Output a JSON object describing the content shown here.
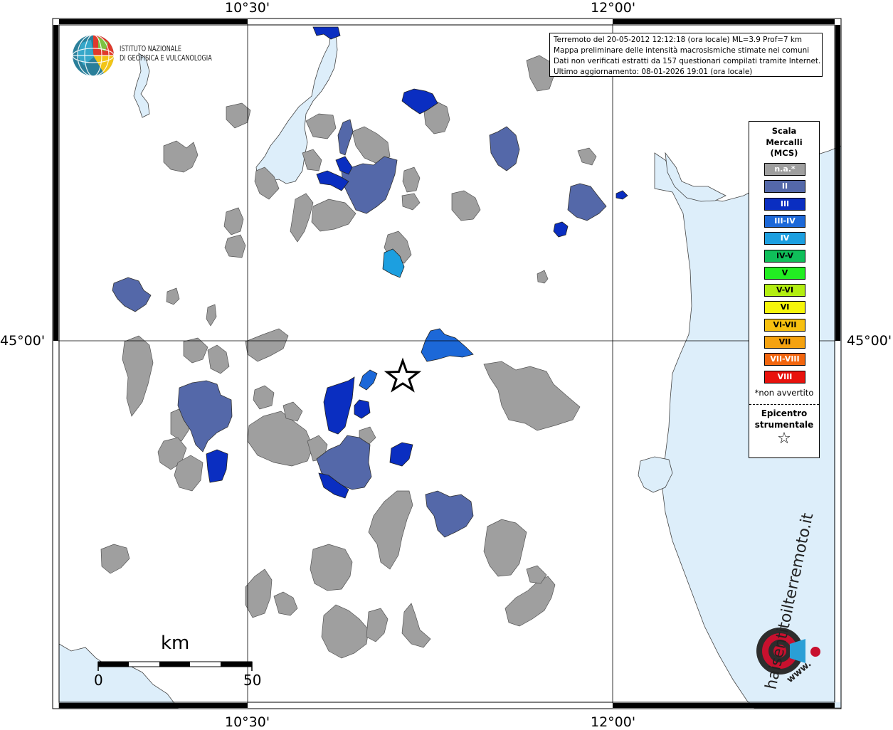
{
  "coords": {
    "top_left": "10°30'",
    "top_right": "12°00'",
    "bottom_left": "10°30'",
    "bottom_right": "12°00'",
    "lat_left": "45°00'",
    "lat_right": "45°00'"
  },
  "institute": {
    "line1": "ISTITUTO NAZIONALE",
    "line2": "DI GEOFISICA E VULCANOLOGIA"
  },
  "info": {
    "line1": "Terremoto del 20-05-2012 12:12:18 (ora locale) ML=3.9 Prof=7 km",
    "line2": "Mappa preliminare delle intensità macrosismiche stimate nei comuni",
    "line3": "Dati non verificati estratti da 157 questionari compilati tramite Internet.",
    "line4": "Ultimo aggiornamento: 08-01-2026 19:01 (ora locale)"
  },
  "legend": {
    "title1": "Scala",
    "title2": "Mercalli",
    "title3": "(MCS)",
    "classes": [
      {
        "label": "n.a.*",
        "color": "#9f9f9f",
        "text": "#ffffff"
      },
      {
        "label": "II",
        "color": "#5468a9",
        "text": "#ffffff"
      },
      {
        "label": "III",
        "color": "#0a2ec1",
        "text": "#ffffff"
      },
      {
        "label": "III-IV",
        "color": "#1c68d8",
        "text": "#ffffff"
      },
      {
        "label": "IV",
        "color": "#1c9fe0",
        "text": "#ffffff"
      },
      {
        "label": "IV-V",
        "color": "#0fbf5a",
        "text": "#000000"
      },
      {
        "label": "V",
        "color": "#22ee22",
        "text": "#000000"
      },
      {
        "label": "V-VI",
        "color": "#b2ee11",
        "text": "#000000"
      },
      {
        "label": "VI",
        "color": "#f5f50a",
        "text": "#000000"
      },
      {
        "label": "VI-VII",
        "color": "#f7c00f",
        "text": "#000000"
      },
      {
        "label": "VII",
        "color": "#f5a20f",
        "text": "#000000"
      },
      {
        "label": "VII-VIII",
        "color": "#f2650e",
        "text": "#ffffff"
      },
      {
        "label": "VIII",
        "color": "#e8120d",
        "text": "#ffffff"
      }
    ],
    "note": "*non avvertito",
    "epicenter1": "Epicentro",
    "epicenter2": "strumentale",
    "epicenter_symbol": "☆"
  },
  "scalebar": {
    "unit": "km",
    "start": "0",
    "end": "50"
  },
  "watermark": {
    "text": "haisentitoilterremoto.it",
    "prefix": "www.",
    "icon": "siren-icon"
  },
  "colors": {
    "sea": "#ddeefa",
    "na": "#9f9f9f",
    "ii": "#5468a9",
    "iii": "#0a2ec1",
    "iii_iv": "#1c68d8",
    "iv": "#1c9fe0"
  }
}
